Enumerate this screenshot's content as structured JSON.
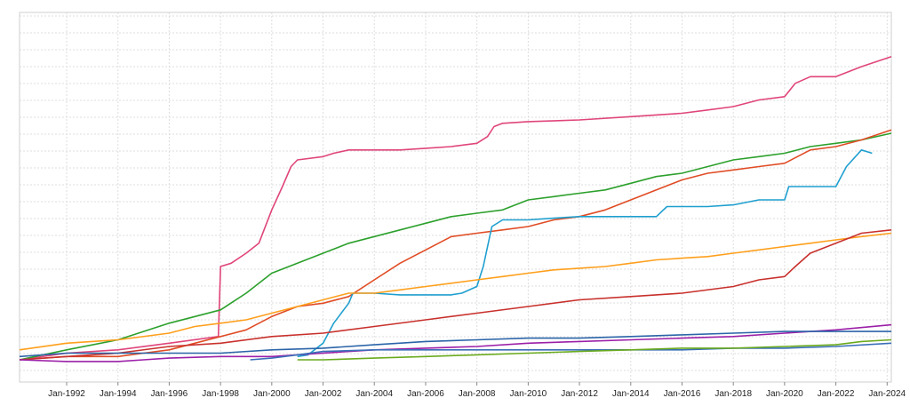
{
  "chart_data": {
    "type": "line",
    "grid": true,
    "legend": "none",
    "x_domain": [
      "1990-03-01",
      "2024-03-01"
    ],
    "ylim": [
      0,
      100
    ],
    "x_tick_labels": [
      "Jan-1992",
      "Jan-1994",
      "Jan-1996",
      "Jan-1998",
      "Jan-2000",
      "Jan-2002",
      "Jan-2004",
      "Jan-2006",
      "Jan-2008",
      "Jan-2010",
      "Jan-2012",
      "Jan-2014",
      "Jan-2016",
      "Jan-2018",
      "Jan-2020",
      "Jan-2022",
      "Jan-2024"
    ],
    "x_tick_dates": [
      "1992-01-01",
      "1994-01-01",
      "1996-01-01",
      "1998-01-01",
      "2000-01-01",
      "2002-01-01",
      "2004-01-01",
      "2006-01-01",
      "2008-01-01",
      "2010-01-01",
      "2012-01-01",
      "2014-01-01",
      "2016-01-01",
      "2018-01-01",
      "2020-01-01",
      "2022-01-01",
      "2024-01-01"
    ],
    "series": [
      {
        "color": "#e0457b",
        "points": [
          [
            "1990-03-01",
            0
          ],
          [
            "1992-01-01",
            2
          ],
          [
            "1994-01-01",
            3
          ],
          [
            "1996-01-01",
            5
          ],
          [
            "1997-12-01",
            7
          ],
          [
            "1998-01-01",
            28
          ],
          [
            "1998-06-01",
            29
          ],
          [
            "1999-01-01",
            32
          ],
          [
            "1999-07-01",
            35
          ],
          [
            "2000-01-01",
            45
          ],
          [
            "2000-06-01",
            52
          ],
          [
            "2000-10-01",
            58
          ],
          [
            "2001-01-01",
            60
          ],
          [
            "2002-01-01",
            61
          ],
          [
            "2002-06-01",
            62
          ],
          [
            "2003-01-01",
            63
          ],
          [
            "2004-01-01",
            63
          ],
          [
            "2005-01-01",
            63
          ],
          [
            "2006-01-01",
            63.5
          ],
          [
            "2007-01-01",
            64
          ],
          [
            "2008-01-01",
            65
          ],
          [
            "2008-06-01",
            67
          ],
          [
            "2008-09-01",
            70
          ],
          [
            "2009-01-01",
            71
          ],
          [
            "2010-01-01",
            71.5
          ],
          [
            "2012-01-01",
            72
          ],
          [
            "2014-01-01",
            73
          ],
          [
            "2016-01-01",
            74
          ],
          [
            "2017-01-01",
            75
          ],
          [
            "2018-01-01",
            76
          ],
          [
            "2019-01-01",
            78
          ],
          [
            "2020-01-01",
            79
          ],
          [
            "2020-06-01",
            83
          ],
          [
            "2021-01-01",
            85
          ],
          [
            "2022-01-01",
            85
          ],
          [
            "2023-01-01",
            88
          ],
          [
            "2024-03-01",
            91
          ]
        ]
      },
      {
        "color": "#2ca02c",
        "points": [
          [
            "1990-03-01",
            0
          ],
          [
            "1992-01-01",
            3
          ],
          [
            "1994-01-01",
            6
          ],
          [
            "1996-01-01",
            11
          ],
          [
            "1998-01-01",
            15
          ],
          [
            "1999-01-01",
            20
          ],
          [
            "2000-01-01",
            26
          ],
          [
            "2001-01-01",
            29
          ],
          [
            "2002-01-01",
            32
          ],
          [
            "2003-01-01",
            35
          ],
          [
            "2004-01-01",
            37
          ],
          [
            "2005-01-01",
            39
          ],
          [
            "2006-01-01",
            41
          ],
          [
            "2007-01-01",
            43
          ],
          [
            "2008-01-01",
            44
          ],
          [
            "2009-01-01",
            45
          ],
          [
            "2010-01-01",
            48
          ],
          [
            "2011-01-01",
            49
          ],
          [
            "2012-01-01",
            50
          ],
          [
            "2013-01-01",
            51
          ],
          [
            "2014-01-01",
            53
          ],
          [
            "2015-01-01",
            55
          ],
          [
            "2016-01-01",
            56
          ],
          [
            "2017-01-01",
            58
          ],
          [
            "2018-01-01",
            60
          ],
          [
            "2019-01-01",
            61
          ],
          [
            "2020-01-01",
            62
          ],
          [
            "2021-01-01",
            64
          ],
          [
            "2022-01-01",
            65
          ],
          [
            "2023-01-01",
            66
          ],
          [
            "2024-03-01",
            68
          ]
        ]
      },
      {
        "color": "#e04c25",
        "points": [
          [
            "1990-03-01",
            0
          ],
          [
            "1992-01-01",
            1
          ],
          [
            "1994-01-01",
            1
          ],
          [
            "1995-01-01",
            2
          ],
          [
            "1996-01-01",
            3
          ],
          [
            "1997-01-01",
            5
          ],
          [
            "1998-01-01",
            7
          ],
          [
            "1999-01-01",
            9
          ],
          [
            "2000-01-01",
            13
          ],
          [
            "2001-01-01",
            16
          ],
          [
            "2002-01-01",
            17
          ],
          [
            "2003-01-01",
            19
          ],
          [
            "2004-01-01",
            24
          ],
          [
            "2005-01-01",
            29
          ],
          [
            "2006-01-01",
            33
          ],
          [
            "2007-01-01",
            37
          ],
          [
            "2008-01-01",
            38
          ],
          [
            "2009-01-01",
            39
          ],
          [
            "2010-01-01",
            40
          ],
          [
            "2011-01-01",
            42
          ],
          [
            "2012-01-01",
            43
          ],
          [
            "2013-01-01",
            45
          ],
          [
            "2014-01-01",
            48
          ],
          [
            "2015-01-01",
            51
          ],
          [
            "2016-01-01",
            54
          ],
          [
            "2017-01-01",
            56
          ],
          [
            "2018-01-01",
            57
          ],
          [
            "2019-01-01",
            58
          ],
          [
            "2020-01-01",
            59
          ],
          [
            "2021-01-01",
            63
          ],
          [
            "2022-01-01",
            64
          ],
          [
            "2023-01-01",
            66
          ],
          [
            "2024-03-01",
            69
          ]
        ]
      },
      {
        "color": "#1f9fcf",
        "points": [
          [
            "2001-01-01",
            1
          ],
          [
            "2001-06-01",
            1.5
          ],
          [
            "2002-01-01",
            5
          ],
          [
            "2002-06-01",
            11
          ],
          [
            "2003-01-01",
            17
          ],
          [
            "2003-03-01",
            20
          ],
          [
            "2004-01-01",
            20
          ],
          [
            "2005-01-01",
            19.5
          ],
          [
            "2006-01-01",
            19.5
          ],
          [
            "2007-01-01",
            19.5
          ],
          [
            "2007-06-01",
            20
          ],
          [
            "2008-01-01",
            22
          ],
          [
            "2008-04-01",
            28
          ],
          [
            "2008-08-01",
            40
          ],
          [
            "2009-01-01",
            42
          ],
          [
            "2010-01-01",
            42
          ],
          [
            "2011-01-01",
            42.5
          ],
          [
            "2012-01-01",
            43
          ],
          [
            "2013-01-01",
            43
          ],
          [
            "2014-01-01",
            43
          ],
          [
            "2015-01-01",
            43
          ],
          [
            "2015-06-01",
            46
          ],
          [
            "2016-01-01",
            46
          ],
          [
            "2017-01-01",
            46
          ],
          [
            "2018-01-01",
            46.5
          ],
          [
            "2019-01-01",
            48
          ],
          [
            "2020-01-01",
            48
          ],
          [
            "2020-03-01",
            52
          ],
          [
            "2021-01-01",
            52
          ],
          [
            "2022-01-01",
            52
          ],
          [
            "2022-06-01",
            58
          ],
          [
            "2023-01-01",
            63
          ],
          [
            "2023-06-01",
            62
          ]
        ]
      },
      {
        "color": "#ff9f1c",
        "points": [
          [
            "1990-03-01",
            3
          ],
          [
            "1992-01-01",
            5
          ],
          [
            "1994-01-01",
            6
          ],
          [
            "1996-01-01",
            8
          ],
          [
            "1997-01-01",
            10
          ],
          [
            "1998-01-01",
            11
          ],
          [
            "1999-01-01",
            12
          ],
          [
            "2000-01-01",
            14
          ],
          [
            "2001-01-01",
            16
          ],
          [
            "2002-01-01",
            18
          ],
          [
            "2003-01-01",
            20
          ],
          [
            "2004-01-01",
            20
          ],
          [
            "2005-01-01",
            21
          ],
          [
            "2006-01-01",
            22
          ],
          [
            "2007-01-01",
            23
          ],
          [
            "2008-01-01",
            24
          ],
          [
            "2009-01-01",
            25
          ],
          [
            "2010-01-01",
            26
          ],
          [
            "2011-01-01",
            27
          ],
          [
            "2012-01-01",
            27.5
          ],
          [
            "2013-01-01",
            28
          ],
          [
            "2014-01-01",
            29
          ],
          [
            "2015-01-01",
            30
          ],
          [
            "2016-01-01",
            30.5
          ],
          [
            "2017-01-01",
            31
          ],
          [
            "2018-01-01",
            32
          ],
          [
            "2019-01-01",
            33
          ],
          [
            "2020-01-01",
            34
          ],
          [
            "2021-01-01",
            35
          ],
          [
            "2022-01-01",
            36
          ],
          [
            "2023-01-01",
            37
          ],
          [
            "2024-03-01",
            38
          ]
        ]
      },
      {
        "color": "#c8302c",
        "points": [
          [
            "1990-03-01",
            0
          ],
          [
            "1992-01-01",
            1
          ],
          [
            "1994-01-01",
            2
          ],
          [
            "1996-01-01",
            4
          ],
          [
            "1998-01-01",
            5
          ],
          [
            "2000-01-01",
            7
          ],
          [
            "2002-01-01",
            8
          ],
          [
            "2004-01-01",
            10
          ],
          [
            "2006-01-01",
            12
          ],
          [
            "2008-01-01",
            14
          ],
          [
            "2010-01-01",
            16
          ],
          [
            "2012-01-01",
            18
          ],
          [
            "2014-01-01",
            19
          ],
          [
            "2016-01-01",
            20
          ],
          [
            "2018-01-01",
            22
          ],
          [
            "2019-01-01",
            24
          ],
          [
            "2020-01-01",
            25
          ],
          [
            "2020-06-01",
            28
          ],
          [
            "2021-01-01",
            32
          ],
          [
            "2022-01-01",
            35
          ],
          [
            "2023-01-01",
            38
          ],
          [
            "2024-03-01",
            39
          ]
        ]
      },
      {
        "color": "#9b1fa8",
        "points": [
          [
            "1990-03-01",
            0
          ],
          [
            "1992-01-01",
            -0.5
          ],
          [
            "1993-01-01",
            -0.5
          ],
          [
            "1994-01-01",
            -0.5
          ],
          [
            "1995-01-01",
            0
          ],
          [
            "1996-01-01",
            0.5
          ],
          [
            "1998-01-01",
            1
          ],
          [
            "2000-01-01",
            1
          ],
          [
            "2002-01-01",
            2
          ],
          [
            "2004-01-01",
            3
          ],
          [
            "2006-01-01",
            3.5
          ],
          [
            "2008-01-01",
            4
          ],
          [
            "2010-01-01",
            5
          ],
          [
            "2012-01-01",
            5.5
          ],
          [
            "2014-01-01",
            6
          ],
          [
            "2016-01-01",
            6.5
          ],
          [
            "2018-01-01",
            7
          ],
          [
            "2020-01-01",
            8
          ],
          [
            "2022-01-01",
            9
          ],
          [
            "2024-03-01",
            10.5
          ]
        ]
      },
      {
        "color": "#2b64a8",
        "points": [
          [
            "1990-03-01",
            1
          ],
          [
            "1992-01-01",
            2
          ],
          [
            "1994-01-01",
            2
          ],
          [
            "1996-01-01",
            2
          ],
          [
            "1998-01-01",
            2
          ],
          [
            "2000-01-01",
            3
          ],
          [
            "2002-01-01",
            3.5
          ],
          [
            "2004-01-01",
            4.5
          ],
          [
            "2006-01-01",
            5.5
          ],
          [
            "2008-01-01",
            6
          ],
          [
            "2010-01-01",
            6.5
          ],
          [
            "2012-01-01",
            6.5
          ],
          [
            "2014-01-01",
            7
          ],
          [
            "2016-01-01",
            7.5
          ],
          [
            "2018-01-01",
            8
          ],
          [
            "2020-01-01",
            8.5
          ],
          [
            "2022-01-01",
            8.5
          ],
          [
            "2024-03-01",
            8.5
          ]
        ]
      },
      {
        "color": "#3a6fb8",
        "points": [
          [
            "1999-03-01",
            0
          ],
          [
            "2000-01-01",
            0.5
          ],
          [
            "2001-01-01",
            1.5
          ],
          [
            "2002-01-01",
            2.5
          ],
          [
            "2004-01-01",
            3
          ],
          [
            "2006-01-01",
            3
          ],
          [
            "2008-01-01",
            3
          ],
          [
            "2010-01-01",
            3
          ],
          [
            "2012-01-01",
            3
          ],
          [
            "2014-01-01",
            3
          ],
          [
            "2016-01-01",
            3
          ],
          [
            "2018-01-01",
            3.5
          ],
          [
            "2020-01-01",
            3.5
          ],
          [
            "2022-01-01",
            4
          ],
          [
            "2024-03-01",
            5
          ]
        ]
      },
      {
        "color": "#6aaa1e",
        "points": [
          [
            "2001-01-01",
            0
          ],
          [
            "2002-01-01",
            0
          ],
          [
            "2004-01-01",
            0.5
          ],
          [
            "2006-01-01",
            1
          ],
          [
            "2008-01-01",
            1.5
          ],
          [
            "2010-01-01",
            2
          ],
          [
            "2012-01-01",
            2.5
          ],
          [
            "2014-01-01",
            3
          ],
          [
            "2016-01-01",
            3.5
          ],
          [
            "2018-01-01",
            3.5
          ],
          [
            "2020-01-01",
            4
          ],
          [
            "2022-01-01",
            4.5
          ],
          [
            "2023-01-01",
            5.5
          ],
          [
            "2024-03-01",
            6
          ]
        ]
      }
    ]
  }
}
